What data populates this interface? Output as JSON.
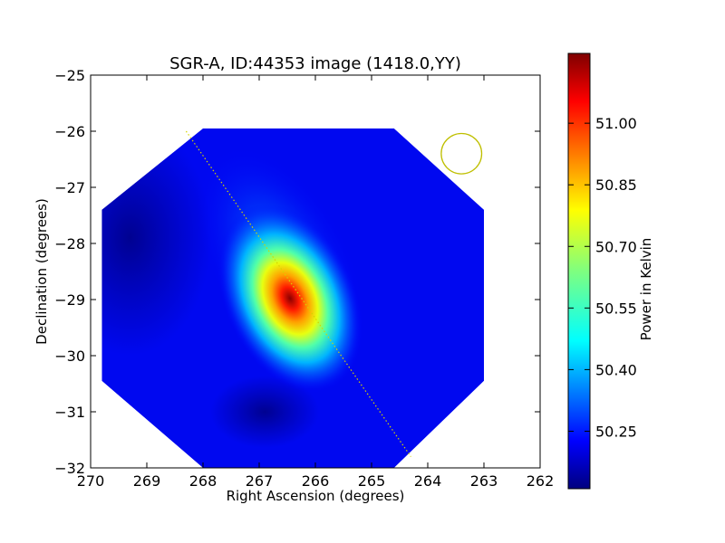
{
  "chart_data": {
    "type": "heatmap",
    "title": "SGR-A, ID:44353 image (1418.0,YY)",
    "xlabel": "Right Ascension (degrees)",
    "ylabel": "Declination (degrees)",
    "xlim": [
      270,
      262
    ],
    "ylim": [
      -32,
      -25
    ],
    "xticks": [
      "270",
      "269",
      "268",
      "267",
      "266",
      "265",
      "264",
      "263",
      "262"
    ],
    "yticks": [
      "−25",
      "−26",
      "−27",
      "−28",
      "−29",
      "−30",
      "−31",
      "−32"
    ],
    "colorbar": {
      "label": "Power in Kelvin",
      "range": [
        50.11,
        51.17
      ],
      "ticks": [
        "50.25",
        "50.40",
        "50.55",
        "50.70",
        "50.85",
        "51.00"
      ],
      "tick_values": [
        50.25,
        50.4,
        50.55,
        50.7,
        50.85,
        51.0
      ],
      "colormap": "jet"
    },
    "footprint_octagon": [
      [
        268.0,
        -25.95
      ],
      [
        264.6,
        -25.95
      ],
      [
        263.0,
        -27.4
      ],
      [
        263.0,
        -30.45
      ],
      [
        264.6,
        -32.0
      ],
      [
        268.0,
        -32.0
      ],
      [
        269.8,
        -30.45
      ],
      [
        269.8,
        -27.4
      ]
    ],
    "peak": {
      "ra": 266.45,
      "dec": -28.9,
      "value": 51.15
    },
    "beam_circle": {
      "ra": 263.4,
      "dec": -26.4,
      "radius_deg": 0.36,
      "color": "#bfbf00"
    },
    "galactic_plane_line": {
      "start": [
        268.3,
        -26.0
      ],
      "end": [
        264.3,
        -31.8
      ],
      "color": "#d4d400"
    }
  }
}
